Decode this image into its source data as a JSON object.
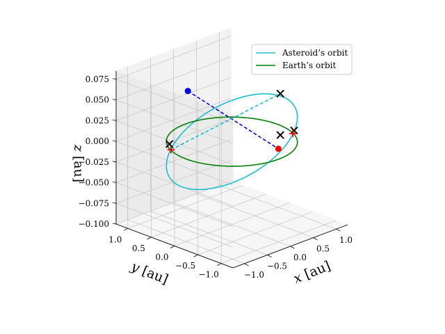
{
  "chart_data": {
    "type": "line3d",
    "xlabel_var": "x",
    "xlabel_unit": "[au]",
    "ylabel_var": "y",
    "ylabel_unit": "[au]",
    "zlabel_var": "z",
    "zlabel_unit": "[au]",
    "xlim": [
      -1.25,
      1.25
    ],
    "ylim": [
      -1.25,
      1.25
    ],
    "zlim": [
      -0.1,
      0.085
    ],
    "x_ticks": [
      "−1.0",
      "−0.5",
      "0.0",
      "0.5",
      "1.0"
    ],
    "y_ticks": [
      "1.0",
      "0.5",
      "0.0",
      "−0.5",
      "−1.0"
    ],
    "z_ticks": [
      "0.075",
      "0.050",
      "0.025",
      "0.000",
      "−0.025",
      "−0.050",
      "−0.075",
      "−0.100"
    ],
    "grid": true,
    "legend_position": "top-right",
    "series": [
      {
        "name": "Asteroid’s orbit",
        "color": "#17becf",
        "type": "line",
        "orbit": {
          "a": 1.0,
          "e": 0.0,
          "inclination_z_amplitude": 0.085,
          "node_angle_deg": 155
        }
      },
      {
        "name": "Earth’s orbit",
        "color": "#008000",
        "type": "line",
        "orbit": {
          "a": 1.0,
          "e": 0.0,
          "inclination_z_amplitude": 0.0
        }
      }
    ],
    "points": {
      "blue": {
        "x": -0.45,
        "y": 0.5,
        "z": 0.06,
        "color": "#0000ff"
      },
      "red": {
        "x": 0.3,
        "y": -0.7,
        "z": 0.0,
        "color": "#ff0000"
      },
      "x_markers": [
        {
          "x": -0.75,
          "y": 0.6,
          "z": 0.0
        },
        {
          "x": 0.72,
          "y": -0.33,
          "z": 0.05
        },
        {
          "x": 0.72,
          "y": -0.33,
          "z": 0.0
        },
        {
          "x": 1.0,
          "y": -0.35,
          "z": 0.0
        }
      ],
      "plus_markers": [
        {
          "x": -0.9,
          "y": 0.42,
          "z": 0.0
        },
        {
          "x": 0.9,
          "y": -0.42,
          "z": 0.0
        }
      ]
    },
    "lines": [
      {
        "from": "blue",
        "to": "red",
        "style": "dashed",
        "color": "#0000ff"
      },
      {
        "from": "plus0",
        "to": "x1",
        "style": "dashed",
        "color": "#17becf"
      }
    ]
  }
}
